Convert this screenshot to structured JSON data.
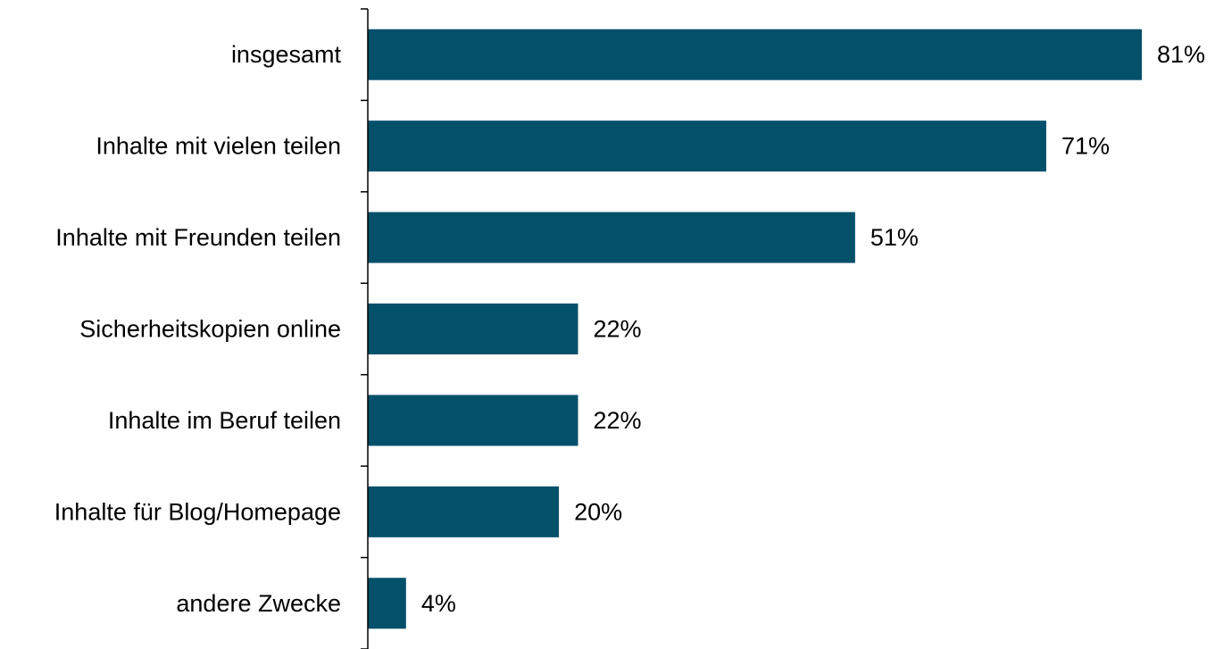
{
  "chart_data": {
    "type": "bar",
    "orientation": "horizontal",
    "categories": [
      "insgesamt",
      "Inhalte mit vielen teilen",
      "Inhalte mit Freunden teilen",
      "Sicherheitskopien online",
      "Inhalte im Beruf teilen",
      "Inhalte für Blog/Homepage",
      "andere Zwecke"
    ],
    "values": [
      81,
      71,
      51,
      22,
      22,
      20,
      4
    ],
    "value_labels": [
      "81%",
      "71%",
      "51%",
      "22%",
      "22%",
      "20%",
      "4%"
    ],
    "unit": "%",
    "xlim": [
      0,
      100
    ],
    "grid": false,
    "legend": "none",
    "colors": {
      "bar": "#03506B",
      "axis": "#000000",
      "text": "#000000"
    }
  }
}
